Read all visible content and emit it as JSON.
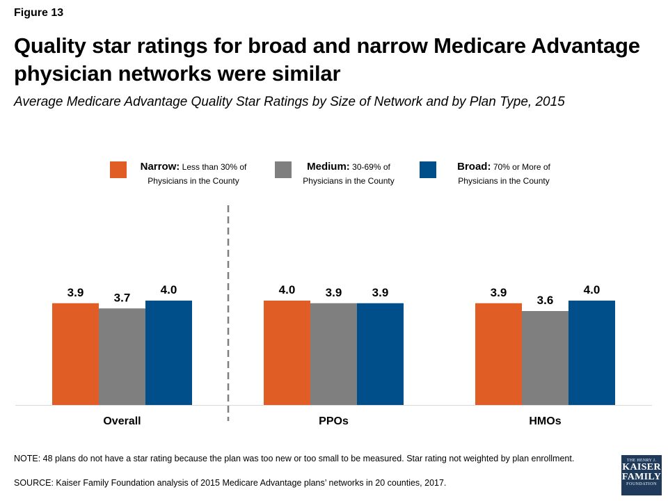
{
  "figure_label": "Figure 13",
  "title": "Quality star ratings for broad and narrow Medicare Advantage physician networks were similar",
  "subtitle": "Average Medicare Advantage Quality Star Ratings by Size of Network and by Plan Type, 2015",
  "legend": [
    {
      "name": "Narrow:",
      "desc": "Less than 30% of Physicians in the County",
      "color": "#e05e26"
    },
    {
      "name": "Medium:",
      "desc": "30-69% of Physicians in the County",
      "color": "#7f7f7f"
    },
    {
      "name": "Broad:",
      "desc": "70% or More of Physicians in the County",
      "color": "#004f8a"
    }
  ],
  "chart_data": {
    "type": "bar",
    "categories": [
      "Overall",
      "PPOs",
      "HMOs"
    ],
    "series": [
      {
        "name": "Narrow",
        "values": [
          3.9,
          4.0,
          3.9
        ],
        "color": "#e05e26"
      },
      {
        "name": "Medium",
        "values": [
          3.7,
          3.9,
          3.6
        ],
        "color": "#7f7f7f"
      },
      {
        "name": "Broad",
        "values": [
          4.0,
          3.9,
          4.0
        ],
        "color": "#004f8a"
      }
    ],
    "value_labels": [
      [
        "3.9",
        "4.0",
        "3.9"
      ],
      [
        "3.7",
        "3.9",
        "3.6"
      ],
      [
        "4.0",
        "3.9",
        "4.0"
      ]
    ],
    "ylim": [
      0,
      5.1
    ],
    "grid": false,
    "legend_position": "top"
  },
  "note": "NOTE: 48 plans do not have a star rating because the plan was too new or too small to be measured. Star rating not weighted by plan enrollment.",
  "source": "SOURCE: Kaiser Family Foundation analysis of 2015 Medicare Advantage plans’ networks in 20 counties, 2017.",
  "logo": {
    "line1": "THE HENRY J.",
    "line2": "KAISER",
    "line3": "FAMILY",
    "line4": "FOUNDATION"
  }
}
